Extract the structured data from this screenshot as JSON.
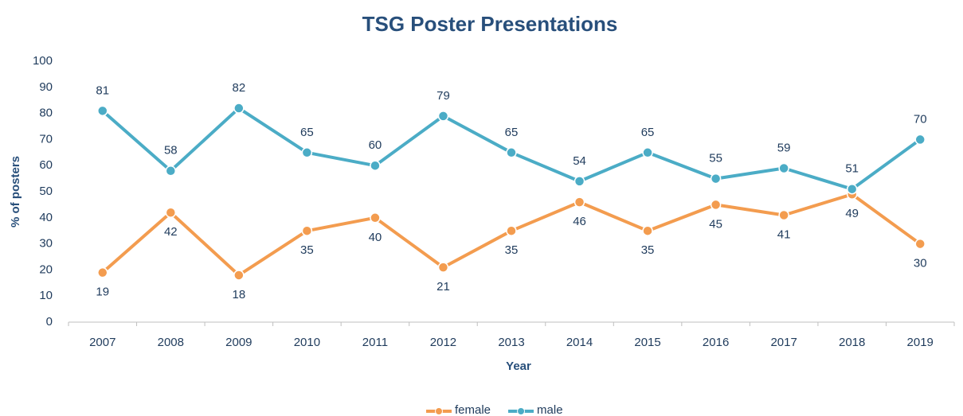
{
  "chart_data": {
    "type": "line",
    "title": "TSG Poster Presentations",
    "x_label": "Year",
    "y_label": "% of posters",
    "categories": [
      "2007",
      "2008",
      "2009",
      "2010",
      "2011",
      "2012",
      "2013",
      "2014",
      "2015",
      "2016",
      "2017",
      "2018",
      "2019"
    ],
    "series": [
      {
        "name": "female",
        "color": "#f39c4f",
        "values": [
          19,
          42,
          18,
          35,
          40,
          21,
          35,
          46,
          35,
          45,
          41,
          49,
          30
        ]
      },
      {
        "name": "male",
        "color": "#4bacc6",
        "values": [
          81,
          58,
          82,
          65,
          60,
          79,
          65,
          54,
          65,
          55,
          59,
          51,
          70
        ]
      }
    ],
    "ylim": [
      0,
      100
    ],
    "yticks": [
      0,
      10,
      20,
      30,
      40,
      50,
      60,
      70,
      80,
      90,
      100
    ],
    "grid": false,
    "legend": "bottom"
  }
}
